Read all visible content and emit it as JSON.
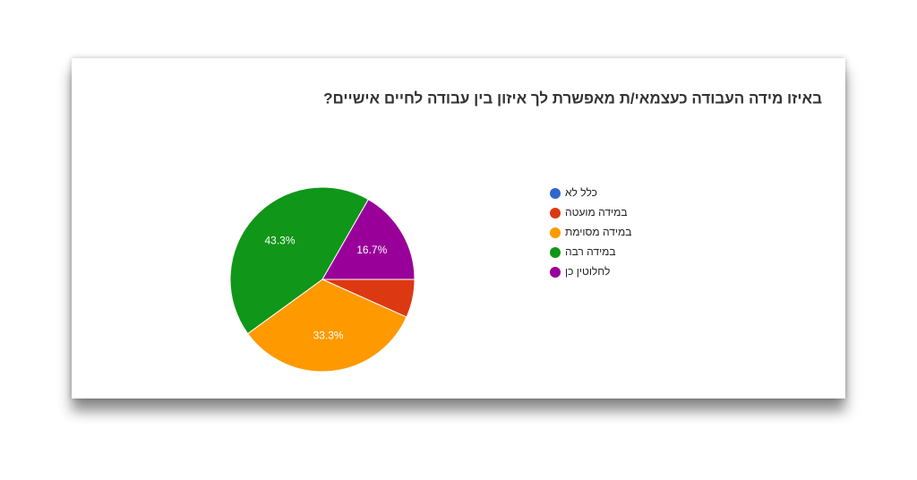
{
  "chart_data": {
    "type": "pie",
    "title": "באיזו מידה העבודה כעצמאי/ת מאפשרת לך איזון בין עבודה לחיים אישיים?",
    "categories": [
      "כלל לא",
      "במידה מועטה",
      "במידה מסוימת",
      "במידה רבה",
      "לחלוטין כן"
    ],
    "values": [
      0,
      6.7,
      33.3,
      43.3,
      16.7
    ],
    "value_labels": [
      null,
      null,
      "33.3%",
      "43.3%",
      "16.7%"
    ],
    "colors": [
      "#3366cc",
      "#dc3912",
      "#ff9900",
      "#109618",
      "#990099"
    ],
    "legend": "right"
  }
}
